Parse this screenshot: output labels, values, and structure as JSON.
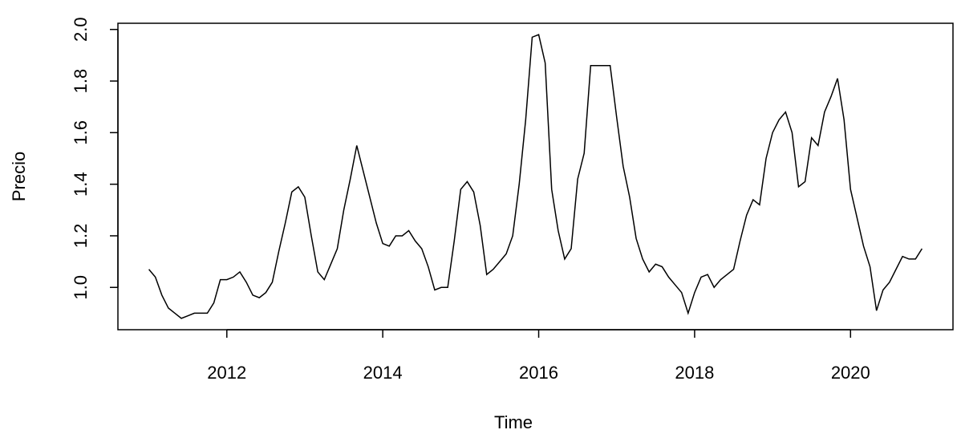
{
  "chart_data": {
    "type": "line",
    "x_label": "Time",
    "y_label": "Precio",
    "x": [
      2011,
      2011.0833,
      2011.1667,
      2011.25,
      2011.3333,
      2011.4167,
      2011.5,
      2011.5833,
      2011.6667,
      2011.75,
      2011.8333,
      2011.9167,
      2012,
      2012.0833,
      2012.1667,
      2012.25,
      2012.3333,
      2012.4167,
      2012.5,
      2012.5833,
      2012.6667,
      2012.75,
      2012.8333,
      2012.9167,
      2013,
      2013.0833,
      2013.1667,
      2013.25,
      2013.3333,
      2013.4167,
      2013.5,
      2013.5833,
      2013.6667,
      2013.75,
      2013.8333,
      2013.9167,
      2014,
      2014.0833,
      2014.1667,
      2014.25,
      2014.3333,
      2014.4167,
      2014.5,
      2014.5833,
      2014.6667,
      2014.75,
      2014.8333,
      2014.9167,
      2015,
      2015.0833,
      2015.1667,
      2015.25,
      2015.3333,
      2015.4167,
      2015.5,
      2015.5833,
      2015.6667,
      2015.75,
      2015.8333,
      2015.9167,
      2016,
      2016.0833,
      2016.1667,
      2016.25,
      2016.3333,
      2016.4167,
      2016.5,
      2016.5833,
      2016.6667,
      2016.75,
      2016.8333,
      2016.9167,
      2017,
      2017.0833,
      2017.1667,
      2017.25,
      2017.3333,
      2017.4167,
      2017.5,
      2017.5833,
      2017.6667,
      2017.75,
      2017.8333,
      2017.9167,
      2018,
      2018.0833,
      2018.1667,
      2018.25,
      2018.3333,
      2018.4167,
      2018.5,
      2018.5833,
      2018.6667,
      2018.75,
      2018.8333,
      2018.9167,
      2019,
      2019.0833,
      2019.1667,
      2019.25,
      2019.3333,
      2019.4167,
      2019.5,
      2019.5833,
      2019.6667,
      2019.75,
      2019.8333,
      2019.9167,
      2020,
      2020.0833,
      2020.1667,
      2020.25,
      2020.3333,
      2020.4167,
      2020.5,
      2020.5833,
      2020.6667,
      2020.75,
      2020.8333,
      2020.9167
    ],
    "values": [
      1.07,
      1.04,
      0.97,
      0.92,
      0.9,
      0.88,
      0.89,
      0.9,
      0.9,
      0.9,
      0.94,
      1.03,
      1.03,
      1.04,
      1.06,
      1.02,
      0.97,
      0.96,
      0.98,
      1.02,
      1.14,
      1.25,
      1.37,
      1.39,
      1.35,
      1.2,
      1.06,
      1.03,
      1.09,
      1.15,
      1.3,
      1.42,
      1.55,
      1.45,
      1.35,
      1.25,
      1.17,
      1.16,
      1.2,
      1.2,
      1.22,
      1.18,
      1.15,
      1.08,
      0.99,
      1.0,
      1.0,
      1.18,
      1.38,
      1.41,
      1.37,
      1.24,
      1.05,
      1.07,
      1.1,
      1.13,
      1.2,
      1.4,
      1.65,
      1.97,
      1.98,
      1.87,
      1.38,
      1.22,
      1.11,
      1.15,
      1.42,
      1.52,
      1.86,
      1.86,
      1.86,
      1.86,
      1.66,
      1.47,
      1.35,
      1.19,
      1.11,
      1.06,
      1.09,
      1.08,
      1.04,
      1.01,
      0.98,
      0.9,
      0.98,
      1.04,
      1.05,
      1.0,
      1.03,
      1.05,
      1.07,
      1.18,
      1.28,
      1.34,
      1.32,
      1.5,
      1.6,
      1.65,
      1.68,
      1.6,
      1.39,
      1.41,
      1.58,
      1.55,
      1.68,
      1.74,
      1.81,
      1.65,
      1.38,
      1.27,
      1.16,
      1.08,
      0.91,
      0.99,
      1.02,
      1.07,
      1.12,
      1.11,
      1.11,
      1.15
    ],
    "color": "#000000",
    "xlim": [
      2010.603,
      2021.314
    ],
    "xticks": [
      2012,
      2014,
      2016,
      2018,
      2020
    ],
    "ylim": [
      0.836,
      2.024
    ],
    "yticks": [
      {
        "value": 1.0,
        "label": "1.0"
      },
      1.2,
      1.4,
      1.6,
      1.8,
      {
        "value": 2.0,
        "label": "2.0"
      }
    ]
  }
}
